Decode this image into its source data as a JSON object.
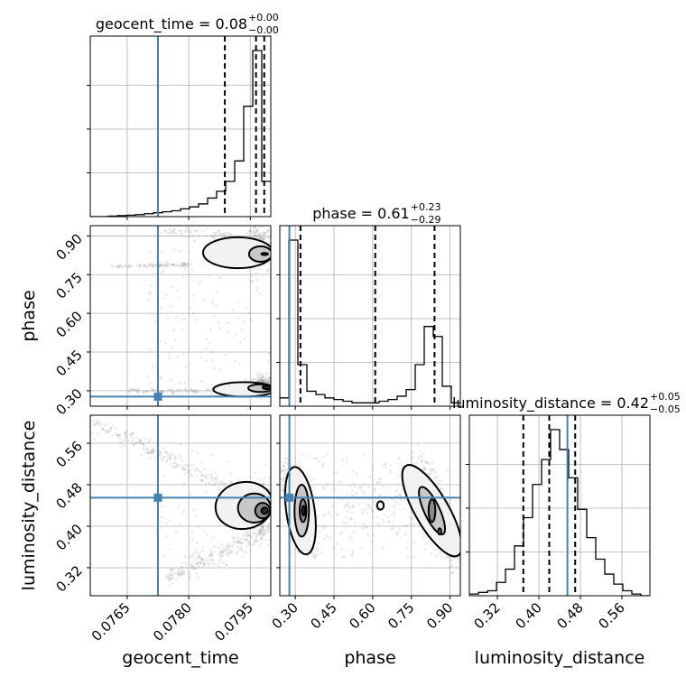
{
  "chart_data": {
    "type": "scatter",
    "parameters": [
      {
        "name": "geocent_time",
        "label": "geocent_time",
        "range": [
          0.0756,
          0.08
        ],
        "ticks": [
          0.0765,
          0.078,
          0.0795
        ],
        "tick_labels": [
          "0.0765",
          "0.0780",
          "0.0795"
        ],
        "truth": 0.07725,
        "quantiles": [
          0.07888,
          0.07964,
          0.07984
        ],
        "title_main": "geocent_time = 0.08",
        "title_plus": "+0.00",
        "title_minus": "−0.00",
        "hist": [
          0,
          0,
          0.5,
          1,
          1.5,
          2,
          3,
          4,
          5,
          6,
          8,
          10,
          13,
          19,
          26,
          36,
          57,
          113,
          170,
          36
        ],
        "hist_max": 170
      },
      {
        "name": "phase",
        "label": "phase",
        "range": [
          0.24,
          0.94
        ],
        "ticks": [
          0.3,
          0.45,
          0.6,
          0.75,
          0.9
        ],
        "tick_labels": [
          "0.30",
          "0.45",
          "0.60",
          "0.75",
          "0.90"
        ],
        "truth": 0.277,
        "quantiles": [
          0.32,
          0.61,
          0.84
        ],
        "title_main": "phase = 0.61",
        "title_plus": "+0.23",
        "title_minus": "−0.29",
        "hist": [
          5,
          100,
          25,
          9,
          7,
          5,
          4,
          3,
          2,
          2,
          2,
          3,
          4,
          6,
          10,
          25,
          48,
          42,
          12,
          2
        ],
        "hist_max": 100
      },
      {
        "name": "luminosity_distance",
        "label": "luminosity_distance",
        "range": [
          0.266,
          0.614
        ],
        "ticks": [
          0.32,
          0.4,
          0.48,
          0.56
        ],
        "tick_labels": [
          "0.32",
          "0.40",
          "0.48",
          "0.56"
        ],
        "truth": 0.455,
        "quantiles": [
          0.37,
          0.42,
          0.47
        ],
        "title_main": "luminosity_distance = 0.42",
        "title_plus": "+0.05",
        "title_minus": "−0.05",
        "hist": [
          1,
          2,
          3,
          8,
          16,
          30,
          47,
          67,
          82,
          100,
          88,
          71,
          52,
          35,
          22,
          13,
          7,
          3,
          1,
          0
        ],
        "hist_max": 100
      }
    ],
    "grid": true,
    "truth_color": "#4682b4",
    "sample_color": "#8c8c8c",
    "contour_fill_levels": [
      "#f2f2f2",
      "#c8c8c8",
      "#8a8a8a",
      "#2b2b2b"
    ]
  }
}
